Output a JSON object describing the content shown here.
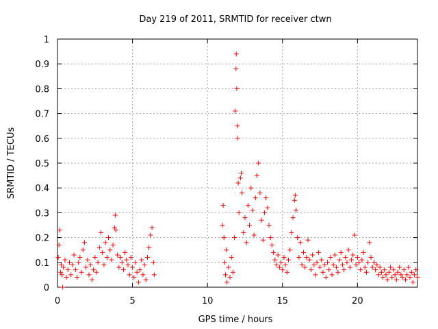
{
  "chart_data": {
    "type": "scatter",
    "title": "Day 219 of 2011, SRMTID for receiver ctwn",
    "xlabel": "GPS time / hours",
    "ylabel": "SRMTID / TECUs",
    "xlim": [
      0,
      24
    ],
    "ylim": [
      0,
      1
    ],
    "xticks": [
      "0",
      "5",
      "10",
      "15",
      "20"
    ],
    "yticks": [
      "0",
      "0.1",
      "0.2",
      "0.3",
      "0.4",
      "0.5",
      "0.6",
      "0.7",
      "0.8",
      "0.9",
      "1"
    ],
    "grid": true,
    "marker": "+",
    "color": "#ff0000",
    "series": [
      {
        "points": [
          [
            0.05,
            0.12
          ],
          [
            0.1,
            0.17
          ],
          [
            0.15,
            0.23
          ],
          [
            0.2,
            0.06
          ],
          [
            0.25,
            0.09
          ],
          [
            0.3,
            0.05
          ],
          [
            0.35,
            0.0
          ],
          [
            0.4,
            0.08
          ],
          [
            0.5,
            0.11
          ],
          [
            0.6,
            0.04
          ],
          [
            0.7,
            0.07
          ],
          [
            0.8,
            0.1
          ],
          [
            0.9,
            0.05
          ],
          [
            1.0,
            0.09
          ],
          [
            1.1,
            0.13
          ],
          [
            1.2,
            0.07
          ],
          [
            1.3,
            0.04
          ],
          [
            1.4,
            0.1
          ],
          [
            1.5,
            0.12
          ],
          [
            1.6,
            0.06
          ],
          [
            1.7,
            0.15
          ],
          [
            1.8,
            0.18
          ],
          [
            1.9,
            0.08
          ],
          [
            2.0,
            0.11
          ],
          [
            2.1,
            0.05
          ],
          [
            2.2,
            0.09
          ],
          [
            2.3,
            0.03
          ],
          [
            2.4,
            0.07
          ],
          [
            2.5,
            0.12
          ],
          [
            2.6,
            0.06
          ],
          [
            2.7,
            0.1
          ],
          [
            2.8,
            0.16
          ],
          [
            2.9,
            0.22
          ],
          [
            3.0,
            0.14
          ],
          [
            3.1,
            0.09
          ],
          [
            3.2,
            0.18
          ],
          [
            3.3,
            0.12
          ],
          [
            3.4,
            0.2
          ],
          [
            3.5,
            0.15
          ],
          [
            3.6,
            0.11
          ],
          [
            3.7,
            0.17
          ],
          [
            3.8,
            0.24
          ],
          [
            3.85,
            0.29
          ],
          [
            3.9,
            0.23
          ],
          [
            4.0,
            0.13
          ],
          [
            4.1,
            0.08
          ],
          [
            4.2,
            0.12
          ],
          [
            4.3,
            0.1
          ],
          [
            4.4,
            0.07
          ],
          [
            4.5,
            0.14
          ],
          [
            4.6,
            0.11
          ],
          [
            4.7,
            0.09
          ],
          [
            4.8,
            0.05
          ],
          [
            4.9,
            0.12
          ],
          [
            5.0,
            0.08
          ],
          [
            5.1,
            0.04
          ],
          [
            5.2,
            0.1
          ],
          [
            5.3,
            0.06
          ],
          [
            5.4,
            0.02
          ],
          [
            5.5,
            0.07
          ],
          [
            5.6,
            0.11
          ],
          [
            5.7,
            0.05
          ],
          [
            5.8,
            0.09
          ],
          [
            5.9,
            0.03
          ],
          [
            6.0,
            0.12
          ],
          [
            6.1,
            0.16
          ],
          [
            6.2,
            0.21
          ],
          [
            6.3,
            0.24
          ],
          [
            6.4,
            0.1
          ],
          [
            6.45,
            0.05
          ],
          [
            11.0,
            0.25
          ],
          [
            11.05,
            0.33
          ],
          [
            11.1,
            0.2
          ],
          [
            11.15,
            0.1
          ],
          [
            11.2,
            0.05
          ],
          [
            11.25,
            0.15
          ],
          [
            11.3,
            0.02
          ],
          [
            11.4,
            0.08
          ],
          [
            11.5,
            0.04
          ],
          [
            11.6,
            0.12
          ],
          [
            11.7,
            0.06
          ],
          [
            11.8,
            0.2
          ],
          [
            11.85,
            0.71
          ],
          [
            11.9,
            0.88
          ],
          [
            11.92,
            0.94
          ],
          [
            11.95,
            0.8
          ],
          [
            12.0,
            0.65
          ],
          [
            12.0,
            0.6
          ],
          [
            12.05,
            0.42
          ],
          [
            12.1,
            0.3
          ],
          [
            12.2,
            0.44
          ],
          [
            12.25,
            0.46
          ],
          [
            12.3,
            0.38
          ],
          [
            12.4,
            0.22
          ],
          [
            12.5,
            0.28
          ],
          [
            12.6,
            0.18
          ],
          [
            12.7,
            0.33
          ],
          [
            12.8,
            0.25
          ],
          [
            12.9,
            0.4
          ],
          [
            13.0,
            0.31
          ],
          [
            13.1,
            0.21
          ],
          [
            13.2,
            0.36
          ],
          [
            13.3,
            0.45
          ],
          [
            13.4,
            0.5
          ],
          [
            13.5,
            0.38
          ],
          [
            13.6,
            0.27
          ],
          [
            13.7,
            0.19
          ],
          [
            13.8,
            0.3
          ],
          [
            13.9,
            0.36
          ],
          [
            14.0,
            0.32
          ],
          [
            14.1,
            0.25
          ],
          [
            14.2,
            0.2
          ],
          [
            14.3,
            0.17
          ],
          [
            14.4,
            0.14
          ],
          [
            14.5,
            0.11
          ],
          [
            14.6,
            0.09
          ],
          [
            14.7,
            0.13
          ],
          [
            14.8,
            0.08
          ],
          [
            14.9,
            0.1
          ],
          [
            15.0,
            0.07
          ],
          [
            15.1,
            0.12
          ],
          [
            15.2,
            0.09
          ],
          [
            15.3,
            0.06
          ],
          [
            15.4,
            0.11
          ],
          [
            15.5,
            0.15
          ],
          [
            15.6,
            0.22
          ],
          [
            15.7,
            0.28
          ],
          [
            15.8,
            0.35
          ],
          [
            15.85,
            0.37
          ],
          [
            15.9,
            0.31
          ],
          [
            16.0,
            0.2
          ],
          [
            16.1,
            0.12
          ],
          [
            16.2,
            0.18
          ],
          [
            16.3,
            0.09
          ],
          [
            16.4,
            0.14
          ],
          [
            16.5,
            0.08
          ],
          [
            16.6,
            0.12
          ],
          [
            16.7,
            0.19
          ],
          [
            16.8,
            0.11
          ],
          [
            16.9,
            0.07
          ],
          [
            17.0,
            0.13
          ],
          [
            17.1,
            0.09
          ],
          [
            17.2,
            0.05
          ],
          [
            17.3,
            0.1
          ],
          [
            17.4,
            0.14
          ],
          [
            17.5,
            0.08
          ],
          [
            17.6,
            0.11
          ],
          [
            17.7,
            0.06
          ],
          [
            17.8,
            0.09
          ],
          [
            17.9,
            0.04
          ],
          [
            18.0,
            0.1
          ],
          [
            18.1,
            0.07
          ],
          [
            18.2,
            0.12
          ],
          [
            18.3,
            0.05
          ],
          [
            18.4,
            0.09
          ],
          [
            18.5,
            0.13
          ],
          [
            18.6,
            0.08
          ],
          [
            18.7,
            0.06
          ],
          [
            18.8,
            0.11
          ],
          [
            18.9,
            0.14
          ],
          [
            19.0,
            0.09
          ],
          [
            19.1,
            0.07
          ],
          [
            19.2,
            0.12
          ],
          [
            19.3,
            0.1
          ],
          [
            19.4,
            0.15
          ],
          [
            19.5,
            0.08
          ],
          [
            19.6,
            0.11
          ],
          [
            19.7,
            0.13
          ],
          [
            19.8,
            0.21
          ],
          [
            19.9,
            0.09
          ],
          [
            20.0,
            0.12
          ],
          [
            20.1,
            0.1
          ],
          [
            20.2,
            0.07
          ],
          [
            20.3,
            0.11
          ],
          [
            20.4,
            0.14
          ],
          [
            20.5,
            0.08
          ],
          [
            20.6,
            0.06
          ],
          [
            20.7,
            0.1
          ],
          [
            20.8,
            0.18
          ],
          [
            20.9,
            0.12
          ],
          [
            21.0,
            0.08
          ],
          [
            21.1,
            0.1
          ],
          [
            21.2,
            0.07
          ],
          [
            21.3,
            0.09
          ],
          [
            21.4,
            0.05
          ],
          [
            21.5,
            0.08
          ],
          [
            21.6,
            0.06
          ],
          [
            21.7,
            0.04
          ],
          [
            21.8,
            0.07
          ],
          [
            21.9,
            0.05
          ],
          [
            22.0,
            0.03
          ],
          [
            22.1,
            0.06
          ],
          [
            22.2,
            0.08
          ],
          [
            22.3,
            0.04
          ],
          [
            22.4,
            0.07
          ],
          [
            22.5,
            0.05
          ],
          [
            22.6,
            0.03
          ],
          [
            22.7,
            0.06
          ],
          [
            22.8,
            0.08
          ],
          [
            22.9,
            0.05
          ],
          [
            23.0,
            0.04
          ],
          [
            23.1,
            0.07
          ],
          [
            23.2,
            0.03
          ],
          [
            23.3,
            0.05
          ],
          [
            23.4,
            0.08
          ],
          [
            23.5,
            0.04
          ],
          [
            23.6,
            0.06
          ],
          [
            23.7,
            0.02
          ],
          [
            23.8,
            0.05
          ],
          [
            23.9,
            0.07
          ],
          [
            24.0,
            0.04
          ]
        ]
      }
    ]
  }
}
